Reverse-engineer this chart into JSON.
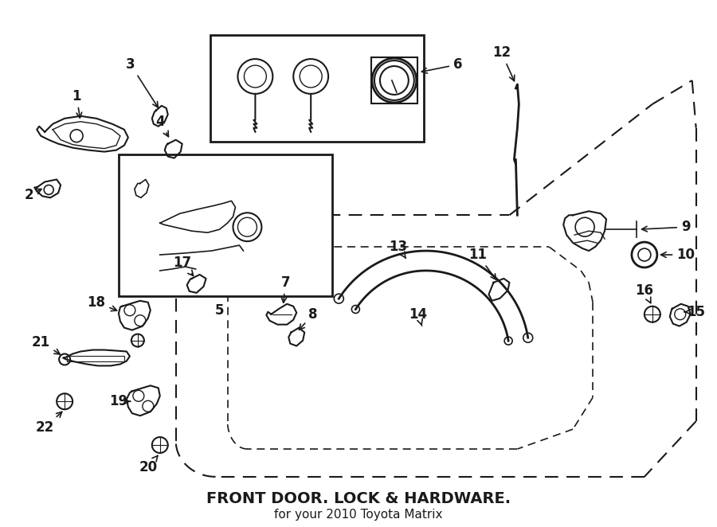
{
  "background_color": "#ffffff",
  "line_color": "#1a1a1a",
  "title": "FRONT DOOR. LOCK & HARDWARE.",
  "subtitle": "for your 2010 Toyota Matrix",
  "figsize": [
    9.0,
    6.62
  ],
  "dpi": 100
}
